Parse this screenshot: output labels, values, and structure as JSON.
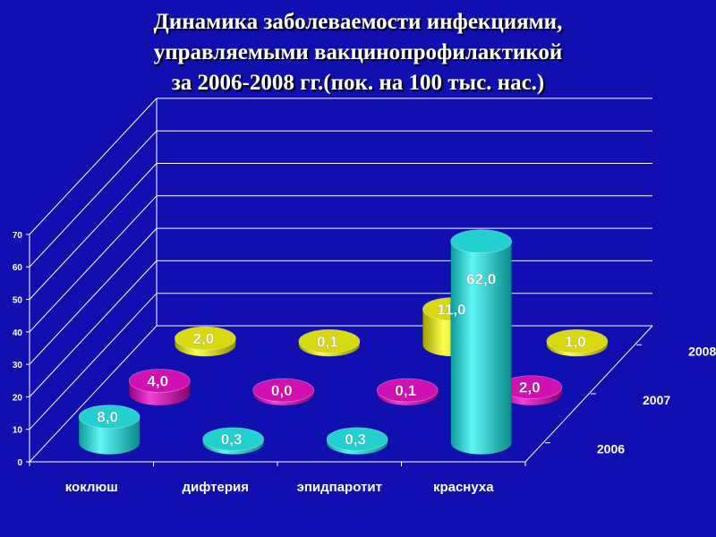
{
  "chart_data": {
    "type": "bar",
    "title_lines": [
      "Динамика заболеваемости инфекциями,",
      "управляемыми вакцинопрофилактикой",
      "за 2006-2008 гг.(пок. на 100 тыс. нас.)"
    ],
    "categories": [
      "коклюш",
      "дифтерия",
      "эпидпаротит",
      "краснуха"
    ],
    "depth_labels": [
      "2006",
      "2007",
      "2008"
    ],
    "ylim": [
      0,
      70
    ],
    "yticks": [
      "0",
      "10",
      "20",
      "30",
      "40",
      "50",
      "60",
      "70"
    ],
    "grid": true,
    "series": [
      {
        "name": "2006",
        "color": "#22d0d0",
        "values": [
          8.0,
          0.3,
          0.3,
          62.0
        ],
        "labels": [
          "8,0",
          "0,3",
          "0,3",
          "62,0"
        ]
      },
      {
        "name": "2007",
        "color": "#d010b0",
        "values": [
          4.0,
          0.0,
          0.1,
          2.0
        ],
        "labels": [
          "4,0",
          "0,0",
          "0,1",
          "2,0"
        ]
      },
      {
        "name": "2008",
        "color": "#d8d810",
        "values": [
          2.0,
          0.1,
          11.0,
          1.0
        ],
        "labels": [
          "2,0",
          "0,1",
          "11,0",
          "1,0"
        ]
      }
    ]
  }
}
